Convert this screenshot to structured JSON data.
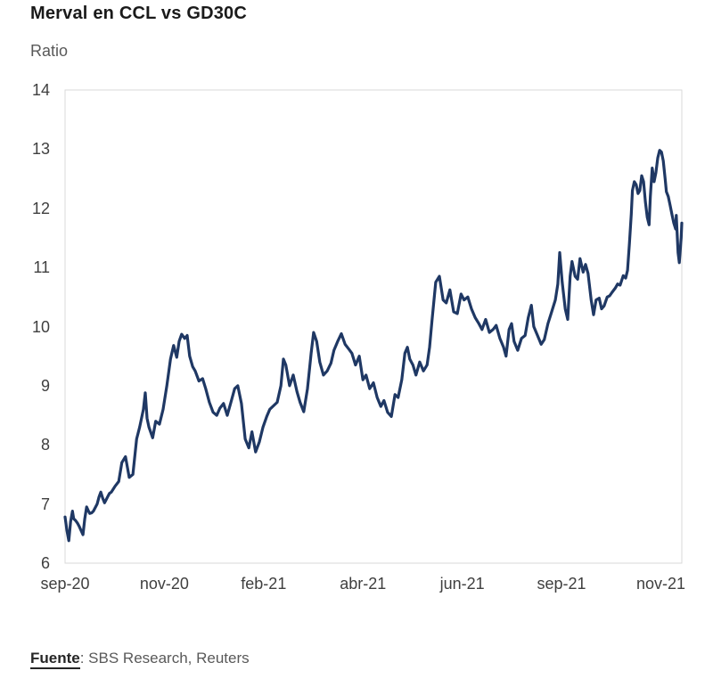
{
  "header": {
    "title": "Merval en CCL vs GD30C",
    "axis_unit": "Ratio"
  },
  "footer": {
    "source_label": "Fuente",
    "source_text": ": SBS Research, Reuters"
  },
  "chart_data": {
    "type": "line",
    "title": "Merval en CCL vs GD30C",
    "ylabel": "Ratio",
    "xlabel": "",
    "ylim": [
      6,
      14
    ],
    "y_ticks": [
      14,
      13,
      12,
      11,
      10,
      9,
      8,
      7,
      6
    ],
    "x_ticks": [
      {
        "label": "sep-20",
        "f": 0.0
      },
      {
        "label": "nov-20",
        "f": 0.161
      },
      {
        "label": "feb-21",
        "f": 0.322
      },
      {
        "label": "abr-21",
        "f": 0.483
      },
      {
        "label": "jun-21",
        "f": 0.644
      },
      {
        "label": "sep-21",
        "f": 0.805
      },
      {
        "label": "nov-21",
        "f": 0.966
      }
    ],
    "grid": false,
    "legend": "none",
    "line_color": "#1f3864",
    "series": [
      {
        "name": "Merval en CCL vs GD30C",
        "points": [
          [
            0.0,
            6.78
          ],
          [
            0.003,
            6.55
          ],
          [
            0.006,
            6.38
          ],
          [
            0.009,
            6.7
          ],
          [
            0.012,
            6.88
          ],
          [
            0.014,
            6.75
          ],
          [
            0.017,
            6.72
          ],
          [
            0.02,
            6.68
          ],
          [
            0.023,
            6.62
          ],
          [
            0.026,
            6.55
          ],
          [
            0.029,
            6.48
          ],
          [
            0.032,
            6.75
          ],
          [
            0.035,
            6.95
          ],
          [
            0.038,
            6.88
          ],
          [
            0.04,
            6.84
          ],
          [
            0.043,
            6.85
          ],
          [
            0.046,
            6.88
          ],
          [
            0.049,
            6.94
          ],
          [
            0.052,
            7.0
          ],
          [
            0.055,
            7.12
          ],
          [
            0.058,
            7.2
          ],
          [
            0.061,
            7.1
          ],
          [
            0.064,
            7.02
          ],
          [
            0.066,
            7.06
          ],
          [
            0.069,
            7.12
          ],
          [
            0.072,
            7.18
          ],
          [
            0.075,
            7.2
          ],
          [
            0.078,
            7.25
          ],
          [
            0.081,
            7.3
          ],
          [
            0.087,
            7.38
          ],
          [
            0.092,
            7.7
          ],
          [
            0.098,
            7.8
          ],
          [
            0.104,
            7.45
          ],
          [
            0.11,
            7.5
          ],
          [
            0.116,
            8.1
          ],
          [
            0.121,
            8.3
          ],
          [
            0.127,
            8.6
          ],
          [
            0.13,
            8.88
          ],
          [
            0.133,
            8.45
          ],
          [
            0.136,
            8.3
          ],
          [
            0.142,
            8.12
          ],
          [
            0.147,
            8.4
          ],
          [
            0.153,
            8.35
          ],
          [
            0.159,
            8.6
          ],
          [
            0.165,
            9.0
          ],
          [
            0.171,
            9.45
          ],
          [
            0.176,
            9.68
          ],
          [
            0.181,
            9.48
          ],
          [
            0.185,
            9.75
          ],
          [
            0.189,
            9.87
          ],
          [
            0.194,
            9.8
          ],
          [
            0.198,
            9.85
          ],
          [
            0.202,
            9.5
          ],
          [
            0.207,
            9.32
          ],
          [
            0.211,
            9.25
          ],
          [
            0.217,
            9.08
          ],
          [
            0.223,
            9.12
          ],
          [
            0.228,
            8.95
          ],
          [
            0.234,
            8.72
          ],
          [
            0.24,
            8.55
          ],
          [
            0.246,
            8.5
          ],
          [
            0.251,
            8.62
          ],
          [
            0.257,
            8.7
          ],
          [
            0.263,
            8.5
          ],
          [
            0.269,
            8.72
          ],
          [
            0.275,
            8.95
          ],
          [
            0.28,
            9.0
          ],
          [
            0.286,
            8.7
          ],
          [
            0.292,
            8.1
          ],
          [
            0.298,
            7.95
          ],
          [
            0.303,
            8.22
          ],
          [
            0.309,
            7.88
          ],
          [
            0.315,
            8.05
          ],
          [
            0.321,
            8.3
          ],
          [
            0.327,
            8.48
          ],
          [
            0.332,
            8.6
          ],
          [
            0.338,
            8.66
          ],
          [
            0.344,
            8.72
          ],
          [
            0.35,
            9.0
          ],
          [
            0.354,
            9.45
          ],
          [
            0.358,
            9.35
          ],
          [
            0.364,
            9.0
          ],
          [
            0.37,
            9.18
          ],
          [
            0.376,
            8.9
          ],
          [
            0.381,
            8.72
          ],
          [
            0.387,
            8.56
          ],
          [
            0.393,
            8.95
          ],
          [
            0.399,
            9.55
          ],
          [
            0.403,
            9.9
          ],
          [
            0.408,
            9.75
          ],
          [
            0.413,
            9.4
          ],
          [
            0.419,
            9.18
          ],
          [
            0.425,
            9.25
          ],
          [
            0.431,
            9.38
          ],
          [
            0.436,
            9.6
          ],
          [
            0.442,
            9.75
          ],
          [
            0.448,
            9.88
          ],
          [
            0.454,
            9.7
          ],
          [
            0.46,
            9.62
          ],
          [
            0.465,
            9.55
          ],
          [
            0.471,
            9.35
          ],
          [
            0.477,
            9.5
          ],
          [
            0.483,
            9.1
          ],
          [
            0.488,
            9.18
          ],
          [
            0.494,
            8.95
          ],
          [
            0.5,
            9.05
          ],
          [
            0.506,
            8.8
          ],
          [
            0.512,
            8.65
          ],
          [
            0.517,
            8.75
          ],
          [
            0.523,
            8.55
          ],
          [
            0.529,
            8.48
          ],
          [
            0.535,
            8.85
          ],
          [
            0.54,
            8.8
          ],
          [
            0.546,
            9.1
          ],
          [
            0.551,
            9.55
          ],
          [
            0.555,
            9.65
          ],
          [
            0.559,
            9.45
          ],
          [
            0.564,
            9.35
          ],
          [
            0.569,
            9.18
          ],
          [
            0.575,
            9.4
          ],
          [
            0.581,
            9.25
          ],
          [
            0.587,
            9.35
          ],
          [
            0.591,
            9.65
          ],
          [
            0.595,
            10.1
          ],
          [
            0.601,
            10.75
          ],
          [
            0.607,
            10.85
          ],
          [
            0.613,
            10.45
          ],
          [
            0.618,
            10.4
          ],
          [
            0.624,
            10.62
          ],
          [
            0.63,
            10.25
          ],
          [
            0.636,
            10.22
          ],
          [
            0.642,
            10.55
          ],
          [
            0.647,
            10.45
          ],
          [
            0.653,
            10.5
          ],
          [
            0.659,
            10.3
          ],
          [
            0.665,
            10.15
          ],
          [
            0.671,
            10.05
          ],
          [
            0.676,
            9.95
          ],
          [
            0.682,
            10.12
          ],
          [
            0.688,
            9.9
          ],
          [
            0.694,
            9.95
          ],
          [
            0.699,
            10.02
          ],
          [
            0.705,
            9.8
          ],
          [
            0.711,
            9.65
          ],
          [
            0.715,
            9.5
          ],
          [
            0.72,
            9.95
          ],
          [
            0.724,
            10.05
          ],
          [
            0.728,
            9.75
          ],
          [
            0.734,
            9.6
          ],
          [
            0.74,
            9.8
          ],
          [
            0.746,
            9.85
          ],
          [
            0.751,
            10.15
          ],
          [
            0.756,
            10.36
          ],
          [
            0.76,
            10.0
          ],
          [
            0.766,
            9.85
          ],
          [
            0.772,
            9.7
          ],
          [
            0.777,
            9.78
          ],
          [
            0.783,
            10.05
          ],
          [
            0.789,
            10.25
          ],
          [
            0.795,
            10.45
          ],
          [
            0.799,
            10.72
          ],
          [
            0.802,
            11.25
          ],
          [
            0.806,
            10.75
          ],
          [
            0.811,
            10.3
          ],
          [
            0.815,
            10.12
          ],
          [
            0.819,
            10.85
          ],
          [
            0.822,
            11.1
          ],
          [
            0.827,
            10.85
          ],
          [
            0.831,
            10.8
          ],
          [
            0.835,
            11.15
          ],
          [
            0.84,
            10.92
          ],
          [
            0.844,
            11.05
          ],
          [
            0.848,
            10.9
          ],
          [
            0.853,
            10.45
          ],
          [
            0.857,
            10.2
          ],
          [
            0.861,
            10.45
          ],
          [
            0.866,
            10.48
          ],
          [
            0.87,
            10.3
          ],
          [
            0.874,
            10.35
          ],
          [
            0.879,
            10.5
          ],
          [
            0.883,
            10.52
          ],
          [
            0.887,
            10.58
          ],
          [
            0.892,
            10.65
          ],
          [
            0.896,
            10.72
          ],
          [
            0.9,
            10.7
          ],
          [
            0.905,
            10.86
          ],
          [
            0.909,
            10.82
          ],
          [
            0.912,
            10.95
          ],
          [
            0.915,
            11.4
          ],
          [
            0.918,
            11.9
          ],
          [
            0.92,
            12.3
          ],
          [
            0.923,
            12.45
          ],
          [
            0.926,
            12.4
          ],
          [
            0.929,
            12.25
          ],
          [
            0.932,
            12.3
          ],
          [
            0.935,
            12.55
          ],
          [
            0.938,
            12.45
          ],
          [
            0.941,
            12.1
          ],
          [
            0.944,
            11.85
          ],
          [
            0.947,
            11.72
          ],
          [
            0.949,
            12.2
          ],
          [
            0.952,
            12.68
          ],
          [
            0.955,
            12.45
          ],
          [
            0.958,
            12.6
          ],
          [
            0.961,
            12.85
          ],
          [
            0.964,
            12.98
          ],
          [
            0.967,
            12.95
          ],
          [
            0.97,
            12.8
          ],
          [
            0.973,
            12.5
          ],
          [
            0.975,
            12.28
          ],
          [
            0.978,
            12.2
          ],
          [
            0.981,
            12.05
          ],
          [
            0.984,
            11.9
          ],
          [
            0.987,
            11.75
          ],
          [
            0.99,
            11.65
          ],
          [
            0.991,
            11.88
          ],
          [
            0.994,
            11.25
          ],
          [
            0.996,
            11.08
          ],
          [
            0.999,
            11.5
          ],
          [
            1.0,
            11.75
          ]
        ]
      }
    ]
  }
}
